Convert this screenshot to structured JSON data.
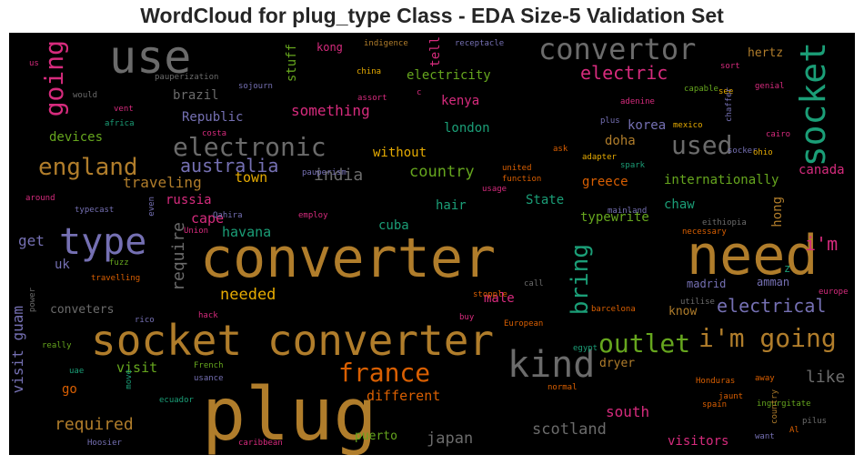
{
  "chart_data": {
    "type": "wordcloud",
    "title": "WordCloud for plug_type Class - EDA Size-5 Validation Set",
    "colors": {
      "gold": "#b07d2b",
      "gray": "#6b6b6b",
      "teal": "#1b9e77",
      "pink": "#d62b7d",
      "purple": "#7570b3",
      "green": "#66a61e",
      "orange": "#d95f02",
      "yellow": "#e6ab02"
    },
    "words": [
      {
        "text": "plug",
        "color": "#b07d2b"
      },
      {
        "text": "converter",
        "color": "#b07d2b"
      },
      {
        "text": "socket converter",
        "color": "#b07d2b"
      },
      {
        "text": "need",
        "color": "#b07d2b"
      },
      {
        "text": "use",
        "color": "#6b6b6b"
      },
      {
        "text": "type",
        "color": "#7570b3"
      },
      {
        "text": "kind",
        "color": "#6b6b6b"
      },
      {
        "text": "convertor",
        "color": "#6b6b6b"
      },
      {
        "text": "socket",
        "color": "#1b9e77"
      },
      {
        "text": "electronic",
        "color": "#6b6b6b"
      },
      {
        "text": "england",
        "color": "#b07d2b"
      },
      {
        "text": "used",
        "color": "#6b6b6b"
      },
      {
        "text": "going",
        "color": "#d62b7d"
      },
      {
        "text": "i'm going",
        "color": "#b07d2b"
      },
      {
        "text": "outlet",
        "color": "#66a61e"
      },
      {
        "text": "france",
        "color": "#d95f02"
      },
      {
        "text": "bring",
        "color": "#1b9e77"
      },
      {
        "text": "electric",
        "color": "#d62b7d"
      },
      {
        "text": "australia",
        "color": "#7570b3"
      },
      {
        "text": "electrical",
        "color": "#7570b3"
      },
      {
        "text": "i'm",
        "color": "#d62b7d"
      },
      {
        "text": "require",
        "color": "#6b6b6b"
      },
      {
        "text": "visit guam",
        "color": "#7570b3"
      },
      {
        "text": "needed",
        "color": "#e6ab02"
      },
      {
        "text": "required",
        "color": "#b07d2b"
      },
      {
        "text": "india",
        "color": "#6b6b6b"
      },
      {
        "text": "country",
        "color": "#66a61e"
      },
      {
        "text": "like",
        "color": "#6b6b6b"
      },
      {
        "text": "scotland",
        "color": "#6b6b6b"
      },
      {
        "text": "japan",
        "color": "#6b6b6b"
      },
      {
        "text": "south",
        "color": "#d62b7d"
      },
      {
        "text": "visitors",
        "color": "#d62b7d"
      },
      {
        "text": "different",
        "color": "#d95f02"
      },
      {
        "text": "something",
        "color": "#d62b7d"
      },
      {
        "text": "electricity",
        "color": "#66a61e"
      },
      {
        "text": "traveling",
        "color": "#b07d2b"
      },
      {
        "text": "cape",
        "color": "#d62b7d"
      },
      {
        "text": "town",
        "color": "#e6ab02"
      },
      {
        "text": "havana",
        "color": "#1b9e77"
      },
      {
        "text": "russia",
        "color": "#d62b7d"
      },
      {
        "text": "get",
        "color": "#7570b3"
      },
      {
        "text": "uk",
        "color": "#7570b3"
      },
      {
        "text": "doha",
        "color": "#b07d2b"
      },
      {
        "text": "korea",
        "color": "#7570b3"
      },
      {
        "text": "greece",
        "color": "#d95f02"
      },
      {
        "text": "internationally",
        "color": "#66a61e"
      },
      {
        "text": "canada",
        "color": "#d62b7d"
      },
      {
        "text": "kenya",
        "color": "#d62b7d"
      },
      {
        "text": "london",
        "color": "#1b9e77"
      },
      {
        "text": "without",
        "color": "#e6ab02"
      },
      {
        "text": "Republic",
        "color": "#7570b3"
      },
      {
        "text": "brazil",
        "color": "#6b6b6b"
      },
      {
        "text": "devices",
        "color": "#66a61e"
      },
      {
        "text": "cuba",
        "color": "#1b9e77"
      },
      {
        "text": "hair",
        "color": "#1b9e77"
      },
      {
        "text": "State",
        "color": "#1b9e77"
      },
      {
        "text": "typewrite",
        "color": "#66a61e"
      },
      {
        "text": "chaw",
        "color": "#1b9e77"
      },
      {
        "text": "hong",
        "color": "#b07d2b"
      },
      {
        "text": "male",
        "color": "#d62b7d"
      },
      {
        "text": "madrid",
        "color": "#7570b3"
      },
      {
        "text": "amman",
        "color": "#7570b3"
      },
      {
        "text": "know",
        "color": "#b07d2b"
      },
      {
        "text": "dryer",
        "color": "#b07d2b"
      },
      {
        "text": "visit",
        "color": "#66a61e"
      },
      {
        "text": "go",
        "color": "#d95f02"
      },
      {
        "text": "puerto",
        "color": "#66a61e"
      },
      {
        "text": "conveters",
        "color": "#6b6b6b"
      },
      {
        "text": "kong",
        "color": "#d62b7d"
      },
      {
        "text": "tell",
        "color": "#d62b7d"
      },
      {
        "text": "stuff",
        "color": "#66a61e"
      },
      {
        "text": "hertz",
        "color": "#b07d2b"
      },
      {
        "text": "z",
        "color": "#1b9e77"
      },
      {
        "text": "indigence",
        "color": "#b07d2b"
      },
      {
        "text": "receptacle",
        "color": "#7570b3"
      },
      {
        "text": "china",
        "color": "#e6ab02"
      },
      {
        "text": "assort",
        "color": "#d62b7d"
      },
      {
        "text": "sojourn",
        "color": "#7570b3"
      },
      {
        "text": "pauperization",
        "color": "#6b6b6b"
      },
      {
        "text": "would",
        "color": "#6b6b6b"
      },
      {
        "text": "vent",
        "color": "#d62b7d"
      },
      {
        "text": "africa",
        "color": "#1b9e77"
      },
      {
        "text": "us",
        "color": "#d62b7d"
      },
      {
        "text": "c",
        "color": "#d62b7d"
      },
      {
        "text": "costa",
        "color": "#d62b7d"
      },
      {
        "text": "pauperism",
        "color": "#7570b3"
      },
      {
        "text": "sort",
        "color": "#d62b7d"
      },
      {
        "text": "see",
        "color": "#e6ab02"
      },
      {
        "text": "capable",
        "color": "#66a61e"
      },
      {
        "text": "adenine",
        "color": "#d62b7d"
      },
      {
        "text": "plus",
        "color": "#7570b3"
      },
      {
        "text": "mexico",
        "color": "#e6ab02"
      },
      {
        "text": "chaffer",
        "color": "#7570b3"
      },
      {
        "text": "genial",
        "color": "#d62b7d"
      },
      {
        "text": "cairo",
        "color": "#d62b7d"
      },
      {
        "text": "ask",
        "color": "#d95f02"
      },
      {
        "text": "adapter",
        "color": "#e6ab02"
      },
      {
        "text": "socker",
        "color": "#7570b3"
      },
      {
        "text": "ohio",
        "color": "#e6ab02"
      },
      {
        "text": "united",
        "color": "#d95f02"
      },
      {
        "text": "spark",
        "color": "#1b9e77"
      },
      {
        "text": "function",
        "color": "#d95f02"
      },
      {
        "text": "usage",
        "color": "#d62b7d"
      },
      {
        "text": "mainland",
        "color": "#7570b3"
      },
      {
        "text": "eithiopia",
        "color": "#6b6b6b"
      },
      {
        "text": "necessary",
        "color": "#d95f02"
      },
      {
        "text": "around",
        "color": "#d62b7d"
      },
      {
        "text": "typecast",
        "color": "#7570b3"
      },
      {
        "text": "even",
        "color": "#7570b3"
      },
      {
        "text": "employ",
        "color": "#d62b7d"
      },
      {
        "text": "Qahira",
        "color": "#7570b3"
      },
      {
        "text": "Union",
        "color": "#d62b7d"
      },
      {
        "text": "fuzz",
        "color": "#66a61e"
      },
      {
        "text": "travelling",
        "color": "#d95f02"
      },
      {
        "text": "power",
        "color": "#6b6b6b"
      },
      {
        "text": "hack",
        "color": "#d62b7d"
      },
      {
        "text": "rico",
        "color": "#7570b3"
      },
      {
        "text": "really",
        "color": "#66a61e"
      },
      {
        "text": "uae",
        "color": "#1b9e77"
      },
      {
        "text": "move",
        "color": "#1b9e77"
      },
      {
        "text": "French",
        "color": "#66a61e"
      },
      {
        "text": "usance",
        "color": "#7570b3"
      },
      {
        "text": "ecuador",
        "color": "#1b9e77"
      },
      {
        "text": "Hoosier",
        "color": "#7570b3"
      },
      {
        "text": "caribbean",
        "color": "#d62b7d"
      },
      {
        "text": "call",
        "color": "#6b6b6b"
      },
      {
        "text": "stopple",
        "color": "#d95f02"
      },
      {
        "text": "buy",
        "color": "#d62b7d"
      },
      {
        "text": "European",
        "color": "#d95f02"
      },
      {
        "text": "barcelona",
        "color": "#d95f02"
      },
      {
        "text": "utilise",
        "color": "#6b6b6b"
      },
      {
        "text": "egypt",
        "color": "#1b9e77"
      },
      {
        "text": "normal",
        "color": "#d95f02"
      },
      {
        "text": "Honduras",
        "color": "#d95f02"
      },
      {
        "text": "away",
        "color": "#d95f02"
      },
      {
        "text": "jaunt",
        "color": "#d95f02"
      },
      {
        "text": "spain",
        "color": "#d95f02"
      },
      {
        "text": "ingurgitate",
        "color": "#66a61e"
      },
      {
        "text": "country",
        "color": "#b07d2b"
      },
      {
        "text": "Al",
        "color": "#d95f02"
      },
      {
        "text": "pilus",
        "color": "#6b6b6b"
      },
      {
        "text": "want",
        "color": "#7570b3"
      },
      {
        "text": "europe",
        "color": "#d62b7d"
      }
    ]
  }
}
